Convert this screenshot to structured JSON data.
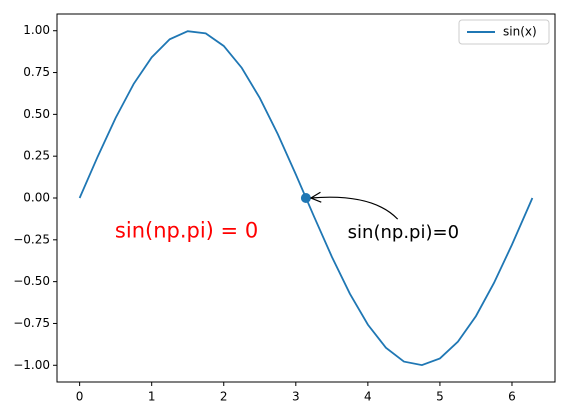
{
  "chart_data": {
    "type": "line",
    "x": [
      0,
      0.25,
      0.5,
      0.75,
      1.0,
      1.25,
      1.5,
      1.75,
      2.0,
      2.25,
      2.5,
      2.75,
      3.0,
      3.25,
      3.5,
      3.75,
      4.0,
      4.25,
      4.5,
      4.75,
      5.0,
      5.25,
      5.5,
      5.75,
      6.0,
      6.25,
      6.283
    ],
    "series": [
      {
        "name": "sin(x)",
        "color": "#1f77b4",
        "values": [
          0,
          0.247,
          0.479,
          0.682,
          0.841,
          0.949,
          0.997,
          0.984,
          0.909,
          0.778,
          0.598,
          0.382,
          0.141,
          -0.108,
          -0.351,
          -0.572,
          -0.757,
          -0.895,
          -0.978,
          -0.999,
          -0.959,
          -0.859,
          -0.706,
          -0.508,
          -0.279,
          -0.033,
          0
        ]
      }
    ],
    "point": {
      "x": 3.14,
      "y": 0,
      "color": "#1f77b4"
    },
    "annotations": [
      {
        "text": "sin(np.pi)=0",
        "x": 3.72,
        "y": -0.21,
        "color": "#000000",
        "arrow_to": [
          3.14,
          0
        ]
      },
      {
        "text": "sin(np.pi) = 0",
        "x": 0.49,
        "y": -0.2,
        "color": "#ff0000"
      }
    ],
    "xlim": [
      -0.314,
      6.597
    ],
    "ylim": [
      -1.1,
      1.1
    ],
    "xticks": [
      0,
      1,
      2,
      3,
      4,
      5,
      6
    ],
    "yticks": [
      {
        "value": -1,
        "label": "−1.00"
      },
      {
        "value": -0.75,
        "label": "−0.75"
      },
      {
        "value": -0.5,
        "label": "−0.50"
      },
      {
        "value": -0.25,
        "label": "−0.25"
      },
      {
        "value": 0,
        "label": "0.00"
      },
      {
        "value": 0.25,
        "label": "0.25"
      },
      {
        "value": 0.5,
        "label": "0.50"
      },
      {
        "value": 0.75,
        "label": "0.75"
      },
      {
        "value": 1,
        "label": "1.00"
      }
    ],
    "legend": "upper right"
  }
}
